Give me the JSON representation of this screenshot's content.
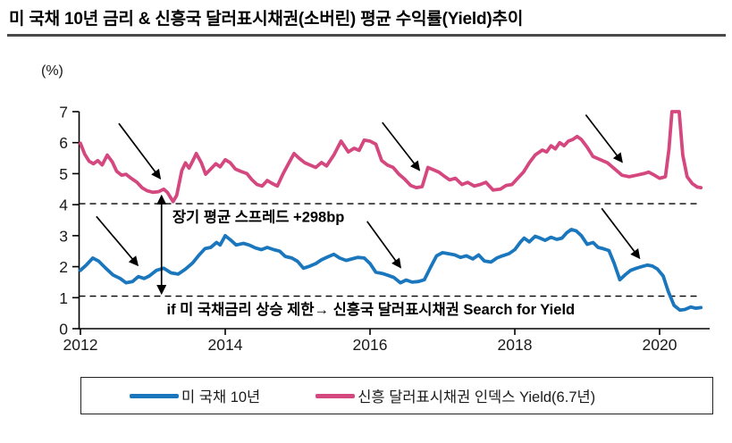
{
  "title": "미 국채 10년 금리 & 신흥국 달러표시채권(소버린) 평균 수익률(Yield)추이",
  "colors": {
    "us_treasury_blue": "#1a76bd",
    "em_bond_pink": "#d4487f",
    "axis_black": "#000000",
    "title_rule_gray": "#4a4a4a"
  },
  "legend": {
    "items": [
      {
        "label": "미 국채 10년",
        "color": "#1a76bd"
      },
      {
        "label": "신흥 달러표시채권 인덱스 Yield(6.7년)",
        "color": "#d4487f"
      }
    ]
  },
  "chart_data": {
    "type": "line",
    "unit_label": "(%)",
    "x_axis": {
      "ticks": [
        2012,
        2014,
        2016,
        2018,
        2020
      ],
      "range": [
        2012,
        2020.75
      ]
    },
    "y_axis": {
      "ticks": [
        0,
        1,
        2,
        3,
        4,
        5,
        6,
        7
      ],
      "range": [
        0,
        7
      ]
    },
    "grid": false,
    "legend_position": "bottom",
    "reference_lines": [
      {
        "name": "em-bond-long-term-level",
        "value": 4.03,
        "style": "dashed",
        "color": "#000000"
      },
      {
        "name": "us-treasury-long-term-level",
        "value": 1.05,
        "style": "dashed",
        "color": "#000000"
      }
    ],
    "series": [
      {
        "name": "미 국채 10년",
        "color": "#1a76bd",
        "points": [
          [
            2012.0,
            1.88
          ],
          [
            2012.08,
            2.05
          ],
          [
            2012.17,
            2.28
          ],
          [
            2012.25,
            2.18
          ],
          [
            2012.35,
            1.95
          ],
          [
            2012.45,
            1.73
          ],
          [
            2012.55,
            1.62
          ],
          [
            2012.63,
            1.48
          ],
          [
            2012.72,
            1.52
          ],
          [
            2012.8,
            1.68
          ],
          [
            2012.88,
            1.62
          ],
          [
            2012.95,
            1.7
          ],
          [
            2013.05,
            1.88
          ],
          [
            2013.15,
            1.95
          ],
          [
            2013.25,
            1.8
          ],
          [
            2013.35,
            1.76
          ],
          [
            2013.45,
            1.92
          ],
          [
            2013.55,
            2.12
          ],
          [
            2013.63,
            2.35
          ],
          [
            2013.72,
            2.58
          ],
          [
            2013.8,
            2.62
          ],
          [
            2013.88,
            2.78
          ],
          [
            2013.93,
            2.7
          ],
          [
            2014.0,
            3.0
          ],
          [
            2014.08,
            2.85
          ],
          [
            2014.15,
            2.7
          ],
          [
            2014.25,
            2.75
          ],
          [
            2014.33,
            2.7
          ],
          [
            2014.42,
            2.6
          ],
          [
            2014.5,
            2.55
          ],
          [
            2014.58,
            2.62
          ],
          [
            2014.67,
            2.55
          ],
          [
            2014.75,
            2.5
          ],
          [
            2014.83,
            2.33
          ],
          [
            2014.92,
            2.28
          ],
          [
            2015.0,
            2.17
          ],
          [
            2015.08,
            1.95
          ],
          [
            2015.17,
            2.02
          ],
          [
            2015.25,
            2.1
          ],
          [
            2015.33,
            2.22
          ],
          [
            2015.42,
            2.32
          ],
          [
            2015.5,
            2.4
          ],
          [
            2015.58,
            2.28
          ],
          [
            2015.67,
            2.2
          ],
          [
            2015.75,
            2.25
          ],
          [
            2015.83,
            2.3
          ],
          [
            2015.92,
            2.28
          ],
          [
            2016.0,
            2.1
          ],
          [
            2016.08,
            1.82
          ],
          [
            2016.17,
            1.78
          ],
          [
            2016.25,
            1.72
          ],
          [
            2016.33,
            1.65
          ],
          [
            2016.42,
            1.48
          ],
          [
            2016.5,
            1.57
          ],
          [
            2016.58,
            1.5
          ],
          [
            2016.67,
            1.52
          ],
          [
            2016.75,
            1.58
          ],
          [
            2016.83,
            1.95
          ],
          [
            2016.92,
            2.35
          ],
          [
            2017.0,
            2.45
          ],
          [
            2017.08,
            2.42
          ],
          [
            2017.17,
            2.38
          ],
          [
            2017.25,
            2.3
          ],
          [
            2017.33,
            2.35
          ],
          [
            2017.42,
            2.25
          ],
          [
            2017.5,
            2.38
          ],
          [
            2017.58,
            2.18
          ],
          [
            2017.67,
            2.15
          ],
          [
            2017.75,
            2.28
          ],
          [
            2017.83,
            2.35
          ],
          [
            2017.92,
            2.42
          ],
          [
            2018.0,
            2.55
          ],
          [
            2018.08,
            2.8
          ],
          [
            2018.13,
            2.92
          ],
          [
            2018.2,
            2.8
          ],
          [
            2018.28,
            2.98
          ],
          [
            2018.35,
            2.92
          ],
          [
            2018.42,
            2.85
          ],
          [
            2018.5,
            2.95
          ],
          [
            2018.58,
            2.88
          ],
          [
            2018.65,
            2.92
          ],
          [
            2018.72,
            3.1
          ],
          [
            2018.78,
            3.2
          ],
          [
            2018.85,
            3.15
          ],
          [
            2018.92,
            3.0
          ],
          [
            2019.0,
            2.72
          ],
          [
            2019.08,
            2.78
          ],
          [
            2019.15,
            2.62
          ],
          [
            2019.22,
            2.58
          ],
          [
            2019.3,
            2.52
          ],
          [
            2019.37,
            2.12
          ],
          [
            2019.45,
            1.58
          ],
          [
            2019.53,
            1.75
          ],
          [
            2019.6,
            1.88
          ],
          [
            2019.68,
            1.95
          ],
          [
            2019.75,
            2.0
          ],
          [
            2019.83,
            2.05
          ],
          [
            2019.9,
            2.02
          ],
          [
            2019.97,
            1.92
          ],
          [
            2020.05,
            1.7
          ],
          [
            2020.12,
            1.2
          ],
          [
            2020.2,
            0.75
          ],
          [
            2020.28,
            0.6
          ],
          [
            2020.35,
            0.62
          ],
          [
            2020.43,
            0.7
          ],
          [
            2020.5,
            0.66
          ],
          [
            2020.57,
            0.68
          ]
        ]
      },
      {
        "name": "신흥 달러표시채권 인덱스 Yield(6.7년)",
        "color": "#d4487f",
        "points": [
          [
            2012.0,
            5.98
          ],
          [
            2012.06,
            5.62
          ],
          [
            2012.12,
            5.4
          ],
          [
            2012.18,
            5.32
          ],
          [
            2012.24,
            5.42
          ],
          [
            2012.3,
            5.28
          ],
          [
            2012.37,
            5.6
          ],
          [
            2012.44,
            5.38
          ],
          [
            2012.5,
            5.08
          ],
          [
            2012.57,
            4.95
          ],
          [
            2012.63,
            4.98
          ],
          [
            2012.7,
            4.85
          ],
          [
            2012.78,
            4.72
          ],
          [
            2012.85,
            4.55
          ],
          [
            2012.92,
            4.45
          ],
          [
            2013.0,
            4.4
          ],
          [
            2013.08,
            4.42
          ],
          [
            2013.15,
            4.5
          ],
          [
            2013.2,
            4.4
          ],
          [
            2013.28,
            4.1
          ],
          [
            2013.33,
            4.3
          ],
          [
            2013.4,
            5.1
          ],
          [
            2013.45,
            5.35
          ],
          [
            2013.5,
            5.18
          ],
          [
            2013.55,
            5.4
          ],
          [
            2013.6,
            5.65
          ],
          [
            2013.67,
            5.35
          ],
          [
            2013.73,
            4.98
          ],
          [
            2013.8,
            5.15
          ],
          [
            2013.87,
            5.32
          ],
          [
            2013.93,
            5.22
          ],
          [
            2014.0,
            5.45
          ],
          [
            2014.07,
            5.35
          ],
          [
            2014.14,
            5.15
          ],
          [
            2014.22,
            5.07
          ],
          [
            2014.3,
            5.0
          ],
          [
            2014.37,
            4.8
          ],
          [
            2014.44,
            4.65
          ],
          [
            2014.51,
            4.6
          ],
          [
            2014.58,
            4.78
          ],
          [
            2014.65,
            4.68
          ],
          [
            2014.72,
            4.6
          ],
          [
            2014.8,
            5.0
          ],
          [
            2014.88,
            5.35
          ],
          [
            2014.95,
            5.65
          ],
          [
            2015.02,
            5.5
          ],
          [
            2015.1,
            5.35
          ],
          [
            2015.17,
            5.28
          ],
          [
            2015.25,
            5.2
          ],
          [
            2015.33,
            5.36
          ],
          [
            2015.4,
            5.25
          ],
          [
            2015.5,
            5.6
          ],
          [
            2015.6,
            6.05
          ],
          [
            2015.7,
            5.7
          ],
          [
            2015.78,
            5.82
          ],
          [
            2015.85,
            5.75
          ],
          [
            2015.92,
            6.08
          ],
          [
            2016.0,
            6.05
          ],
          [
            2016.08,
            5.95
          ],
          [
            2016.16,
            5.42
          ],
          [
            2016.24,
            5.28
          ],
          [
            2016.32,
            5.2
          ],
          [
            2016.4,
            4.98
          ],
          [
            2016.48,
            4.82
          ],
          [
            2016.56,
            4.62
          ],
          [
            2016.64,
            4.55
          ],
          [
            2016.72,
            4.58
          ],
          [
            2016.8,
            5.2
          ],
          [
            2016.88,
            5.12
          ],
          [
            2016.95,
            5.05
          ],
          [
            2017.02,
            4.93
          ],
          [
            2017.1,
            4.8
          ],
          [
            2017.18,
            4.85
          ],
          [
            2017.27,
            4.65
          ],
          [
            2017.35,
            4.72
          ],
          [
            2017.44,
            4.6
          ],
          [
            2017.52,
            4.65
          ],
          [
            2017.6,
            4.72
          ],
          [
            2017.7,
            4.47
          ],
          [
            2017.8,
            4.5
          ],
          [
            2017.88,
            4.62
          ],
          [
            2017.96,
            4.65
          ],
          [
            2018.04,
            4.85
          ],
          [
            2018.12,
            5.05
          ],
          [
            2018.2,
            5.35
          ],
          [
            2018.28,
            5.6
          ],
          [
            2018.33,
            5.68
          ],
          [
            2018.38,
            5.76
          ],
          [
            2018.44,
            5.7
          ],
          [
            2018.5,
            5.9
          ],
          [
            2018.56,
            5.8
          ],
          [
            2018.62,
            6.0
          ],
          [
            2018.68,
            5.9
          ],
          [
            2018.74,
            6.05
          ],
          [
            2018.8,
            6.1
          ],
          [
            2018.86,
            6.2
          ],
          [
            2018.92,
            6.1
          ],
          [
            2019.0,
            5.85
          ],
          [
            2019.08,
            5.55
          ],
          [
            2019.18,
            5.45
          ],
          [
            2019.28,
            5.35
          ],
          [
            2019.38,
            5.15
          ],
          [
            2019.48,
            4.95
          ],
          [
            2019.58,
            4.9
          ],
          [
            2019.68,
            4.95
          ],
          [
            2019.78,
            5.0
          ],
          [
            2019.85,
            5.05
          ],
          [
            2019.93,
            4.95
          ],
          [
            2020.0,
            4.85
          ],
          [
            2020.08,
            4.9
          ],
          [
            2020.13,
            5.8
          ],
          [
            2020.17,
            7.0
          ],
          [
            2020.27,
            7.0
          ],
          [
            2020.32,
            5.6
          ],
          [
            2020.38,
            4.9
          ],
          [
            2020.45,
            4.68
          ],
          [
            2020.52,
            4.57
          ],
          [
            2020.57,
            4.55
          ]
        ]
      }
    ],
    "annotations": {
      "texts": [
        {
          "name": "spread-label",
          "text": "장기 평균 스프레드 +298bp",
          "x": 2013.27,
          "y": 3.62,
          "anchor": "start"
        },
        {
          "name": "search-for-yield-label",
          "text": "if 미 국채금리 상승 제한→ 신흥국 달러표시채권  Search for Yield",
          "x": 2016.01,
          "y": 0.64,
          "anchor": "middle"
        }
      ],
      "arrows": [
        {
          "name": "arrow-to-em-bond-2013-low",
          "x1": 2012.53,
          "y1": 6.62,
          "x2": 2013.1,
          "y2": 4.85,
          "double": false
        },
        {
          "name": "arrow-to-us-treasury-2012",
          "x1": 2012.22,
          "y1": 3.62,
          "x2": 2012.79,
          "y2": 2.05,
          "double": false
        },
        {
          "name": "spread-double-arrow",
          "x1": 2013.12,
          "y1": 4.28,
          "x2": 2013.12,
          "y2": 1.14,
          "double": true
        },
        {
          "name": "arrow-to-em-bond-2016",
          "x1": 2016.17,
          "y1": 6.65,
          "x2": 2016.68,
          "y2": 5.12,
          "double": false
        },
        {
          "name": "arrow-to-us-treasury-2016",
          "x1": 2015.96,
          "y1": 3.46,
          "x2": 2016.42,
          "y2": 1.98,
          "double": false
        },
        {
          "name": "arrow-to-em-bond-2019",
          "x1": 2018.98,
          "y1": 6.9,
          "x2": 2019.48,
          "y2": 5.38,
          "double": false
        },
        {
          "name": "arrow-to-us-treasury-2019",
          "x1": 2019.2,
          "y1": 3.88,
          "x2": 2019.72,
          "y2": 2.28,
          "double": false
        }
      ]
    }
  }
}
